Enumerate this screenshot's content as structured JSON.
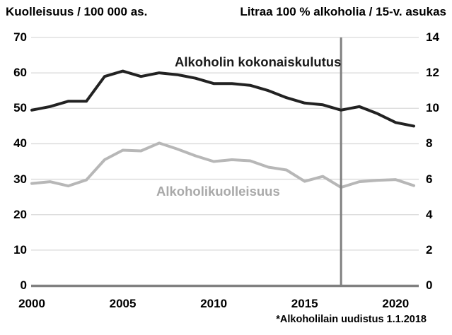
{
  "header": {
    "left_axis_title": "Kuolleisuus / 100 000 as.",
    "right_axis_title": "Litraa 100 % alkoholia / 15-v. asukas"
  },
  "annotations": {
    "consumption_label": "Alkoholin kokonaiskulutus",
    "mortality_label": "Alkoholikuolleisuus",
    "footnote": "*Alkoholilain uudistus 1.1.2018"
  },
  "chart_data": {
    "type": "line",
    "title": "",
    "x": [
      2000,
      2001,
      2002,
      2003,
      2004,
      2005,
      2006,
      2007,
      2008,
      2009,
      2010,
      2011,
      2012,
      2013,
      2014,
      2015,
      2016,
      2017,
      2018,
      2019,
      2020,
      2021
    ],
    "x_ticks": [
      2000,
      2005,
      2010,
      2015,
      2020
    ],
    "y_left": {
      "title": "Kuolleisuus / 100 000 as.",
      "range": [
        0,
        70
      ],
      "ticks": [
        70,
        60,
        50,
        40,
        30,
        20,
        10,
        0
      ]
    },
    "y_right": {
      "title": "Litraa 100 % alkoholia / 15-v. asukas",
      "range": [
        0,
        14
      ],
      "ticks": [
        14,
        12,
        10,
        8,
        6,
        4,
        2,
        0
      ]
    },
    "grid": true,
    "legend_position": "inline-labels",
    "series": [
      {
        "name": "Alkoholin kokonaiskulutus",
        "axis": "right",
        "color": "#222222",
        "values": [
          9.9,
          10.1,
          10.4,
          10.4,
          11.8,
          12.1,
          11.8,
          12.0,
          11.9,
          11.7,
          11.4,
          11.4,
          11.3,
          11.0,
          10.6,
          10.3,
          10.2,
          9.9,
          10.1,
          9.7,
          9.2,
          9.0
        ]
      },
      {
        "name": "Alkoholikuolleisuus",
        "axis": "left",
        "color": "#b7b7b7",
        "values": [
          28.8,
          29.3,
          28.1,
          29.8,
          35.5,
          38.2,
          38.0,
          40.2,
          38.5,
          36.6,
          35.0,
          35.5,
          35.2,
          33.4,
          32.6,
          29.4,
          30.8,
          27.7,
          29.3,
          29.7,
          29.9,
          28.2
        ]
      }
    ],
    "vline": {
      "x": 2017,
      "color": "#808080",
      "note": "*Alkoholilain uudistus 1.1.2018"
    },
    "colors": {
      "gridline": "#d9d9d9",
      "axis_line": "#808080"
    }
  }
}
